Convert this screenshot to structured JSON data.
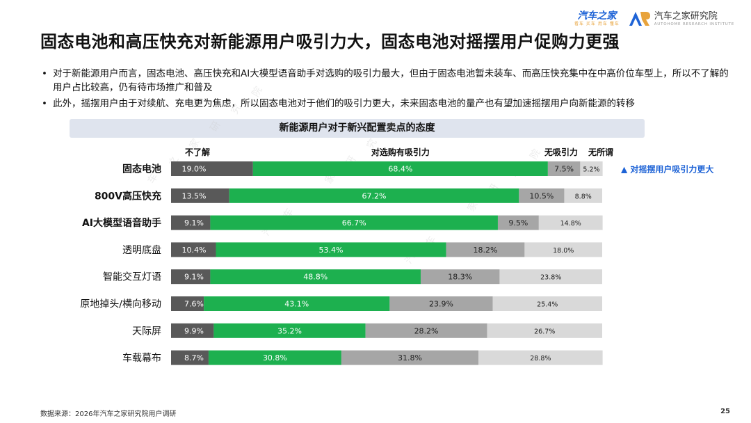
{
  "header": {
    "brand_autohome": "汽车之家",
    "brand_autohome_tag": "看车 买车 用车 懂车",
    "brand_research": "汽车之家研究院",
    "brand_research_sub": "AUTOHOME RESEARCH INSTITUTE"
  },
  "title": "固态电池和高压快充对新能源用户吸引力大，固态电池对摇摆用户促购力更强",
  "bullets": [
    "对于新能源用户而言，固态电池、高压快充和AI大模型语音助手对选购的吸引力最大，但由于固态电池暂未装车、而高压快充集中在中高价位车型上，所以不了解的用户占比较高，仍有待市场推广和普及",
    "此外，摇摆用户由于对续航、充电更为焦虑，所以固态电池对于他们的吸引力更大，未来固态电池的量产也有望加速摇摆用户向新能源的转移"
  ],
  "chart_header": "新能源用户对于新兴配置卖点的态度",
  "chart_data": {
    "type": "bar",
    "orientation": "horizontal",
    "stacked": true,
    "percent": true,
    "categories": [
      "固态电池",
      "800V高压快充",
      "AI大模型语音助手",
      "透明底盘",
      "智能交互灯语",
      "原地掉头/横向移动",
      "天际屏",
      "车载幕布"
    ],
    "series": [
      {
        "name": "不了解",
        "color": "#595959",
        "values": [
          19.0,
          13.5,
          9.1,
          10.4,
          9.1,
          7.6,
          9.9,
          8.7
        ]
      },
      {
        "name": "对选购有吸引力",
        "color": "#1db04f",
        "values": [
          68.4,
          67.2,
          66.7,
          53.4,
          48.8,
          43.1,
          35.2,
          30.8
        ]
      },
      {
        "name": "无吸引力",
        "color": "#a6a6a6",
        "values": [
          7.5,
          10.5,
          9.5,
          18.2,
          18.3,
          23.9,
          28.2,
          31.8
        ]
      },
      {
        "name": "无所谓",
        "color": "#d9d9d9",
        "values": [
          5.2,
          8.8,
          14.8,
          18.0,
          23.8,
          25.4,
          26.7,
          28.8
        ]
      }
    ],
    "bold_categories": [
      "固态电池",
      "800V高压快充",
      "AI大模型语音助手"
    ],
    "annotation": {
      "text": "▲ 对摇摆用户吸引力更大",
      "category": "固态电池",
      "color": "#1e63d6"
    }
  },
  "watermark": "汽车之家研究院",
  "source": "数据来源：2026年汽车之家研究院用户调研",
  "page_number": "25"
}
